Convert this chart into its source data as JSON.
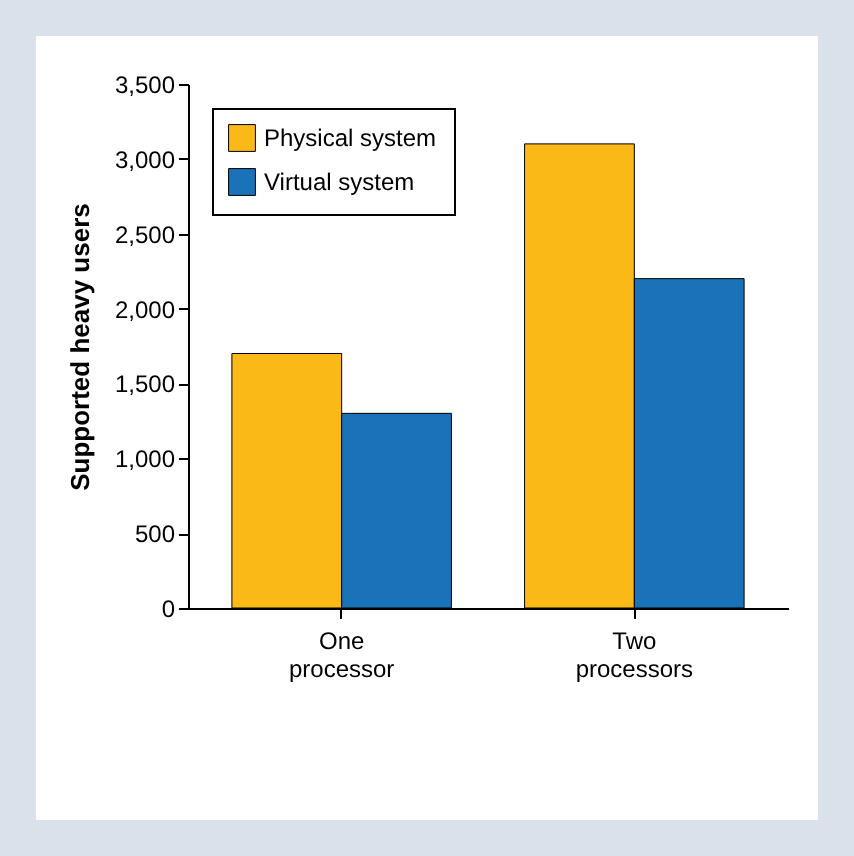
{
  "chart_data": {
    "type": "bar",
    "ylabel": "Supported heavy users",
    "categories": [
      "One processor",
      "Two processors"
    ],
    "series": [
      {
        "name": "Physical system",
        "color": "#fbb917",
        "values": [
          1700,
          3100
        ]
      },
      {
        "name": "Virtual system",
        "color": "#1a72b8",
        "values": [
          1300,
          2200
        ]
      }
    ],
    "ylim": [
      0,
      3500
    ],
    "yticks": [
      0,
      500,
      {
        "value": 1000,
        "label": "1,000"
      },
      {
        "value": 1500,
        "label": "1,500"
      },
      {
        "value": 2000,
        "label": "2,000"
      },
      {
        "value": 2500,
        "label": "2,500"
      },
      {
        "value": 3000,
        "label": "3,000"
      },
      {
        "value": 3500,
        "label": "3,500"
      }
    ],
    "grid": false,
    "legend": "top left"
  }
}
